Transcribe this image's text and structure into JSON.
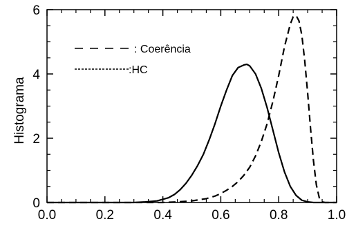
{
  "chart_data": {
    "type": "line",
    "title": "",
    "xlabel": "",
    "ylabel": "Histograma",
    "xlim": [
      0.0,
      1.0
    ],
    "ylim": [
      0,
      6
    ],
    "xticks": [
      "0.0",
      "0.2",
      "0.4",
      "0.6",
      "0.8",
      "1.0"
    ],
    "yticks": [
      "0",
      "2",
      "4",
      "6"
    ],
    "grid": false,
    "legend_position": "top-left",
    "series": [
      {
        "name": ":HC",
        "style": "solid",
        "color": "#000000",
        "legend_text": ":HC",
        "x": [
          0.3,
          0.34,
          0.38,
          0.42,
          0.44,
          0.46,
          0.48,
          0.5,
          0.52,
          0.54,
          0.56,
          0.58,
          0.6,
          0.62,
          0.64,
          0.66,
          0.68,
          0.69,
          0.7,
          0.72,
          0.74,
          0.76,
          0.78,
          0.8,
          0.82,
          0.84,
          0.86,
          0.88,
          0.9,
          0.92,
          0.94
        ],
        "y": [
          0.0,
          0.02,
          0.05,
          0.15,
          0.25,
          0.4,
          0.6,
          0.85,
          1.15,
          1.5,
          1.95,
          2.45,
          3.0,
          3.5,
          3.95,
          4.2,
          4.28,
          4.3,
          4.25,
          4.0,
          3.55,
          2.95,
          2.25,
          1.55,
          0.95,
          0.5,
          0.22,
          0.07,
          0.02,
          0.0,
          0.0
        ]
      },
      {
        "name": ": Coerência",
        "style": "dashed",
        "color": "#000000",
        "legend_text": ": Coerência",
        "x": [
          0.4,
          0.45,
          0.5,
          0.55,
          0.58,
          0.6,
          0.62,
          0.64,
          0.66,
          0.68,
          0.7,
          0.72,
          0.74,
          0.76,
          0.78,
          0.8,
          0.82,
          0.84,
          0.85,
          0.86,
          0.87,
          0.88,
          0.89,
          0.9,
          0.91,
          0.92,
          0.93,
          0.94,
          0.95,
          0.96
        ],
        "y": [
          0.0,
          0.02,
          0.05,
          0.12,
          0.2,
          0.28,
          0.38,
          0.5,
          0.65,
          0.85,
          1.1,
          1.45,
          1.9,
          2.45,
          3.15,
          3.95,
          4.85,
          5.55,
          5.78,
          5.82,
          5.65,
          5.2,
          4.4,
          3.4,
          2.3,
          1.3,
          0.55,
          0.15,
          0.02,
          0.0
        ]
      }
    ]
  }
}
